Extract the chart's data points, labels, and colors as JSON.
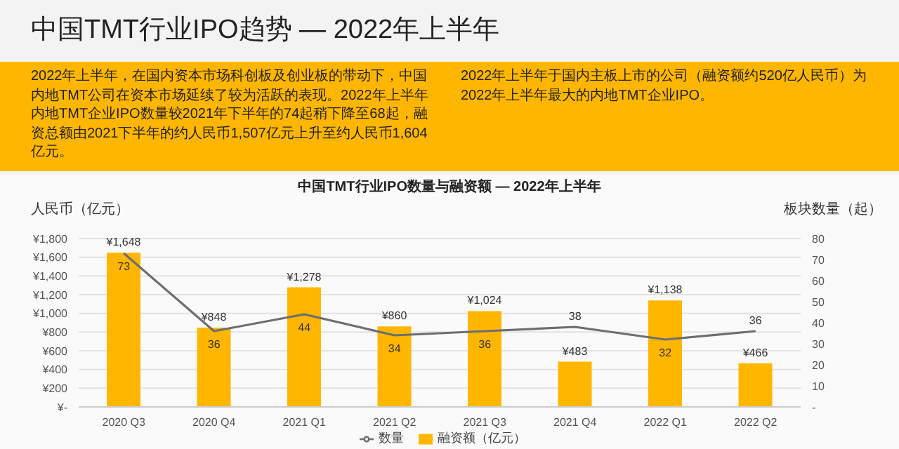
{
  "chart_data": {
    "type": "bar",
    "title": "中国TMT行业IPO数量与融资额 — 2022年上半年",
    "subtitle": "中国TMT行业IPO趋势 — 2022年上半年",
    "annotations": [
      "2022年上半年，在国内资本市场科创板及创业板的带动下，中国内地TMT公司在资本市场延续了较为活跃的表现。2022年上半年内地TMT企业IPO数量较2021年下半年的74起稍下降至68起，融资总额由2021下半年的约人民币1,507亿元上升至约人民币1,604亿元。",
      "2022年上半年于国内主板上市的公司（融资额约520亿人民币）为2022年上半年最大的内地TMT企业IPO。"
    ],
    "ylabel": "人民币（亿元）",
    "y2label": "板块数量（起）",
    "categories": [
      "2020 Q3",
      "2020 Q4",
      "2021 Q1",
      "2021 Q2",
      "2021 Q3",
      "2021 Q4",
      "2022 Q1",
      "2022 Q2"
    ],
    "series": [
      {
        "name": "融资额（亿元）",
        "color": "#ffb600",
        "values": [
          1648,
          848,
          1278,
          860,
          1024,
          483,
          1138,
          466
        ],
        "value_labels": [
          "¥1,648",
          "¥848",
          "¥1,278",
          "¥860",
          "¥1,024",
          "¥483",
          "¥1,138",
          "¥466"
        ]
      },
      {
        "name": "数量",
        "type": "line",
        "axis": "y2",
        "color": "#6d6e71",
        "values": [
          73,
          36,
          44,
          34,
          36,
          38,
          32,
          36
        ],
        "value_labels": [
          "73",
          "36",
          "44",
          "34",
          "36",
          "38",
          "32",
          "36"
        ]
      }
    ],
    "ylim": [
      0,
      1800
    ],
    "yticks": [
      {
        "value": 0,
        "label": "¥-"
      },
      {
        "value": 200,
        "label": "¥200"
      },
      {
        "value": 400,
        "label": "¥400"
      },
      {
        "value": 600,
        "label": "¥600"
      },
      {
        "value": 800,
        "label": "¥800"
      },
      {
        "value": 1000,
        "label": "¥1,000"
      },
      {
        "value": 1200,
        "label": "¥1,200"
      },
      {
        "value": 1400,
        "label": "¥1,400"
      },
      {
        "value": 1600,
        "label": "¥1,600"
      },
      {
        "value": 1800,
        "label": "¥1,800"
      }
    ],
    "y2lim": [
      0,
      80
    ],
    "y2ticks": [
      {
        "value": 0,
        "label": "-"
      },
      10,
      20,
      30,
      40,
      50,
      60,
      70,
      80
    ],
    "grid": "y",
    "legend": "bottom",
    "marker": "none"
  }
}
